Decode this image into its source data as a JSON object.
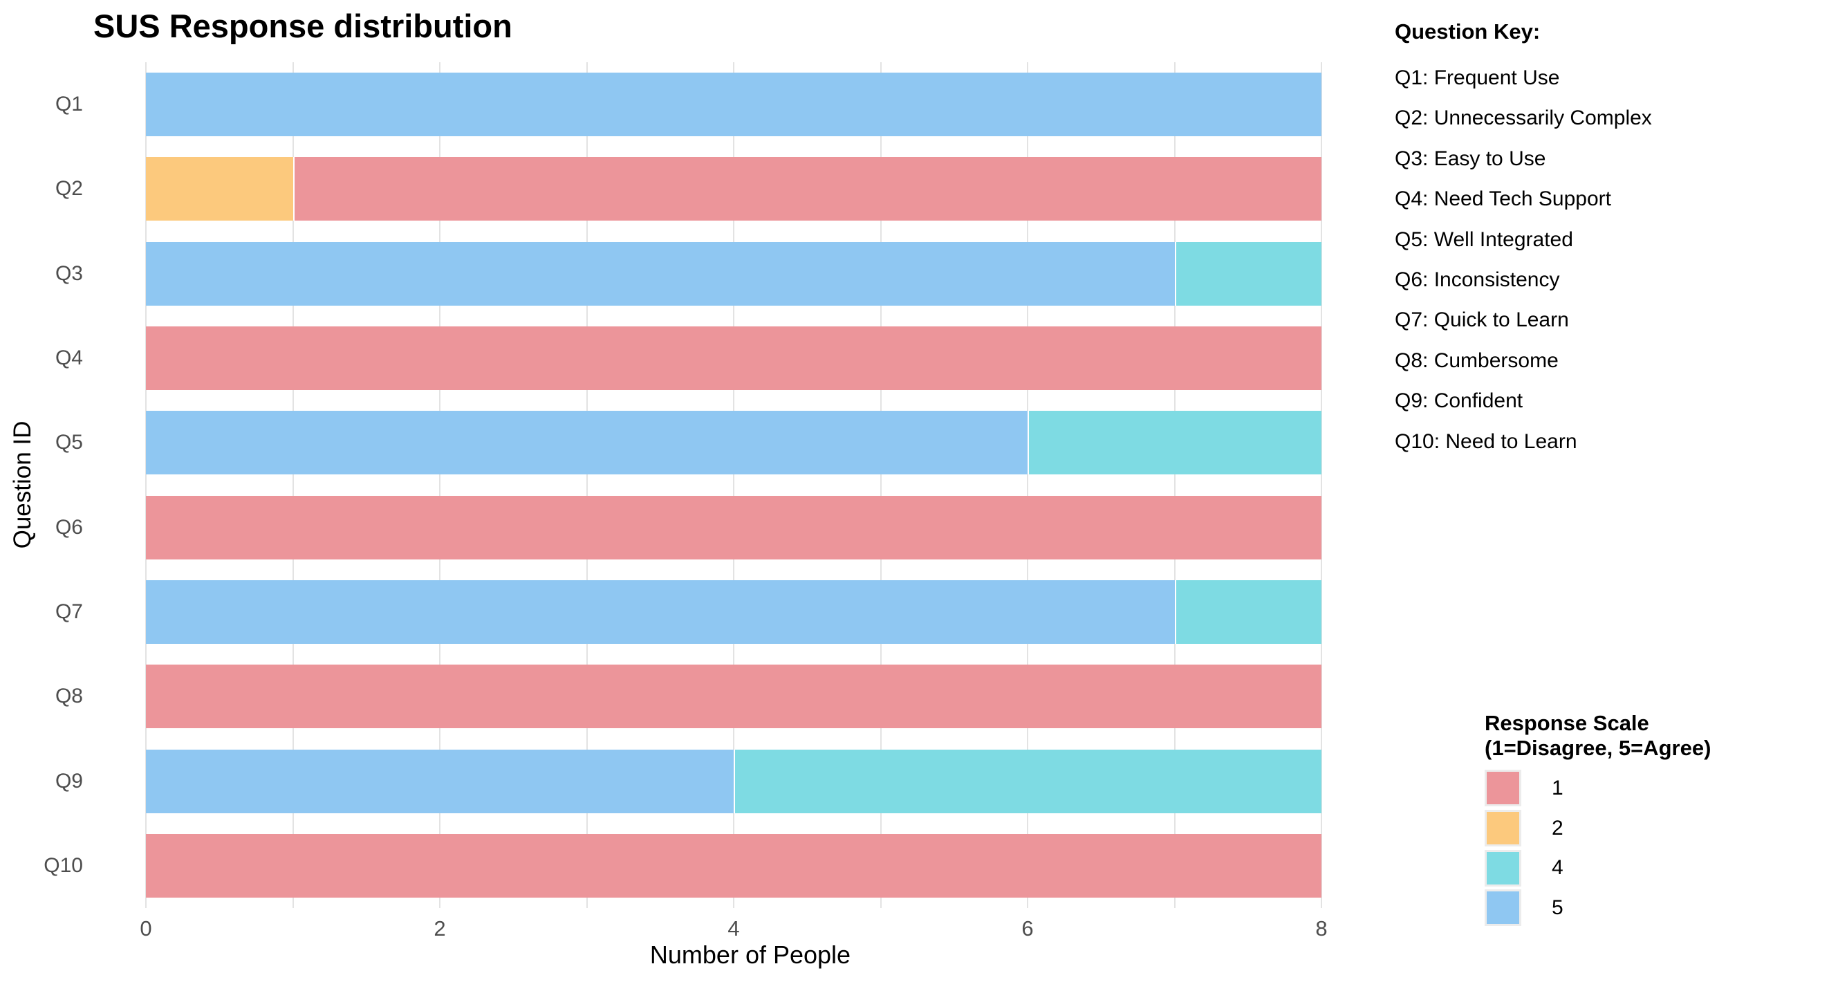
{
  "title": "SUS Response distribution",
  "x_axis": {
    "label": "Number of People",
    "ticks": [
      0,
      2,
      4,
      6,
      8
    ]
  },
  "y_axis": {
    "label": "Question ID"
  },
  "question_key": {
    "title": "Question Key:",
    "items": [
      "Q1: Frequent Use",
      "Q2: Unnecessarily Complex",
      "Q3: Easy to Use",
      "Q4: Need Tech Support",
      "Q5: Well Integrated",
      "Q6: Inconsistency",
      "Q7: Quick to Learn",
      "Q8: Cumbersome",
      "Q9: Confident",
      "Q10: Need to Learn"
    ]
  },
  "legend": {
    "title_line1": "Response Scale",
    "title_line2": "(1=Disagree, 5=Agree)",
    "entries": [
      {
        "label": "1",
        "color": "#EC959A"
      },
      {
        "label": "2",
        "color": "#FCC97D"
      },
      {
        "label": "4",
        "color": "#7EDBE3"
      },
      {
        "label": "5",
        "color": "#8FC7F2"
      }
    ]
  },
  "chart_data": {
    "type": "bar",
    "orientation": "horizontal",
    "stacked": true,
    "title": "SUS Response distribution",
    "xlabel": "Number of People",
    "ylabel": "Question ID",
    "xlim": [
      0,
      8
    ],
    "grid": true,
    "legend_position": "right",
    "categories": [
      "Q1",
      "Q2",
      "Q3",
      "Q4",
      "Q5",
      "Q6",
      "Q7",
      "Q8",
      "Q9",
      "Q10"
    ],
    "series": [
      {
        "name": "5",
        "color": "#8FC7F2",
        "values": [
          8,
          0,
          7,
          0,
          6,
          0,
          7,
          0,
          4,
          0
        ]
      },
      {
        "name": "4",
        "color": "#7EDBE3",
        "values": [
          0,
          0,
          1,
          0,
          2,
          0,
          1,
          0,
          4,
          0
        ]
      },
      {
        "name": "2",
        "color": "#FCC97D",
        "values": [
          0,
          1,
          0,
          0,
          0,
          0,
          0,
          0,
          0,
          0
        ]
      },
      {
        "name": "1",
        "color": "#EC959A",
        "values": [
          0,
          7,
          0,
          8,
          0,
          8,
          0,
          8,
          0,
          8
        ]
      }
    ]
  }
}
